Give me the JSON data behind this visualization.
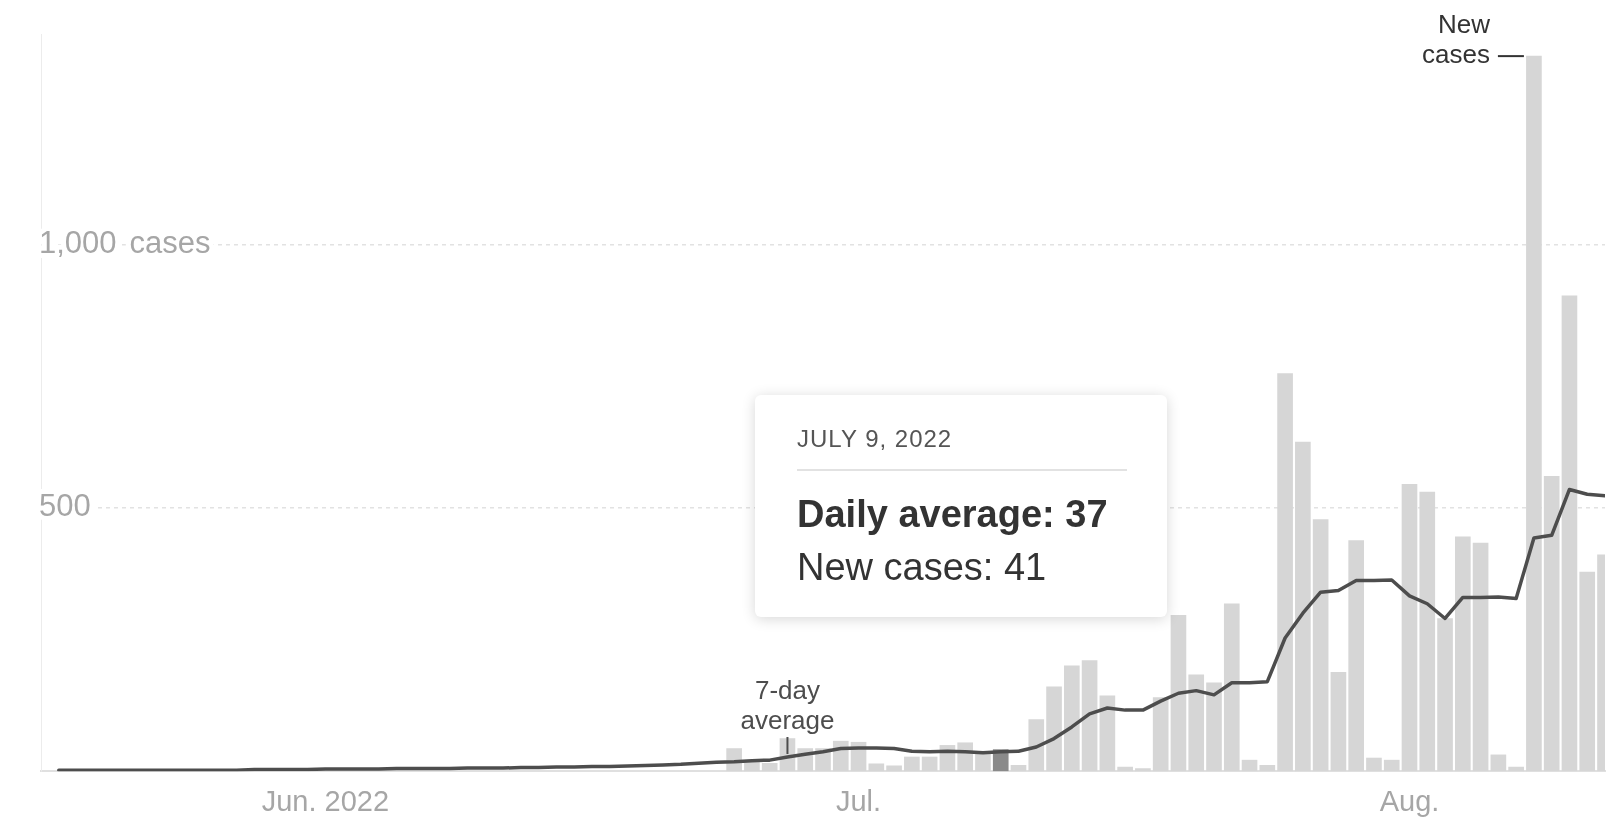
{
  "chart_data": {
    "type": "bar",
    "x": [
      "2022-05-17",
      "2022-05-18",
      "2022-05-19",
      "2022-05-20",
      "2022-05-21",
      "2022-05-22",
      "2022-05-23",
      "2022-05-24",
      "2022-05-25",
      "2022-05-26",
      "2022-05-27",
      "2022-05-28",
      "2022-05-29",
      "2022-05-30",
      "2022-05-31",
      "2022-06-01",
      "2022-06-02",
      "2022-06-03",
      "2022-06-04",
      "2022-06-05",
      "2022-06-06",
      "2022-06-07",
      "2022-06-08",
      "2022-06-09",
      "2022-06-10",
      "2022-06-11",
      "2022-06-12",
      "2022-06-13",
      "2022-06-14",
      "2022-06-15",
      "2022-06-16",
      "2022-06-17",
      "2022-06-18",
      "2022-06-19",
      "2022-06-20",
      "2022-06-21",
      "2022-06-22",
      "2022-06-23",
      "2022-06-24",
      "2022-06-25",
      "2022-06-26",
      "2022-06-27",
      "2022-06-28",
      "2022-06-29",
      "2022-06-30",
      "2022-07-01",
      "2022-07-02",
      "2022-07-03",
      "2022-07-04",
      "2022-07-05",
      "2022-07-06",
      "2022-07-07",
      "2022-07-08",
      "2022-07-09",
      "2022-07-10",
      "2022-07-11",
      "2022-07-12",
      "2022-07-13",
      "2022-07-14",
      "2022-07-15",
      "2022-07-16",
      "2022-07-17",
      "2022-07-18",
      "2022-07-19",
      "2022-07-20",
      "2022-07-21",
      "2022-07-22",
      "2022-07-23",
      "2022-07-24",
      "2022-07-25",
      "2022-07-26",
      "2022-07-27",
      "2022-07-28",
      "2022-07-29",
      "2022-07-30",
      "2022-07-31",
      "2022-08-01",
      "2022-08-02",
      "2022-08-03",
      "2022-08-04",
      "2022-08-05",
      "2022-08-06",
      "2022-08-07",
      "2022-08-08",
      "2022-08-09",
      "2022-08-10",
      "2022-08-11",
      "2022-08-12"
    ],
    "series": [
      {
        "name": "New cases",
        "values": [
          null,
          null,
          null,
          null,
          null,
          null,
          null,
          null,
          null,
          null,
          null,
          null,
          null,
          null,
          null,
          null,
          null,
          null,
          null,
          null,
          null,
          null,
          null,
          null,
          null,
          null,
          null,
          null,
          null,
          null,
          null,
          null,
          null,
          null,
          null,
          null,
          null,
          null,
          43,
          18,
          15,
          62,
          43,
          43,
          57,
          55,
          14,
          10,
          27,
          27,
          49,
          54,
          37,
          41,
          11,
          98,
          160,
          200,
          210,
          143,
          8,
          5,
          140,
          296,
          183,
          168,
          318,
          21,
          11,
          755,
          625,
          478,
          188,
          438,
          25,
          21,
          545,
          530,
          290,
          445,
          433,
          31,
          8,
          1358,
          560,
          903,
          378,
          411
        ],
        "colors": [
          "#d6d6d6",
          "#d6d6d6",
          "#d6d6d6",
          "#d6d6d6",
          "#d6d6d6",
          "#d6d6d6",
          "#d6d6d6",
          "#d6d6d6",
          "#d6d6d6",
          "#d6d6d6",
          "#d6d6d6",
          "#d6d6d6",
          "#d6d6d6",
          "#d6d6d6",
          "#d6d6d6",
          "#d6d6d6",
          "#d6d6d6",
          "#d6d6d6",
          "#d6d6d6",
          "#d6d6d6",
          "#d6d6d6",
          "#d6d6d6",
          "#d6d6d6",
          "#d6d6d6",
          "#d6d6d6",
          "#d6d6d6",
          "#d6d6d6",
          "#d6d6d6",
          "#d6d6d6",
          "#d6d6d6",
          "#d6d6d6",
          "#d6d6d6",
          "#d6d6d6",
          "#d6d6d6",
          "#d6d6d6",
          "#d6d6d6",
          "#d6d6d6",
          "#d6d6d6",
          "#d6d6d6",
          "#d6d6d6",
          "#d6d6d6",
          "#d6d6d6",
          "#d6d6d6",
          "#d6d6d6",
          "#d6d6d6",
          "#d6d6d6",
          "#d6d6d6",
          "#d6d6d6",
          "#d6d6d6",
          "#d6d6d6",
          "#d6d6d6",
          "#d6d6d6",
          "#d6d6d6",
          "#8a8a8a",
          "#d6d6d6",
          "#d6d6d6",
          "#d6d6d6",
          "#d6d6d6",
          "#d6d6d6",
          "#d6d6d6",
          "#d6d6d6",
          "#d6d6d6",
          "#d6d6d6",
          "#d6d6d6",
          "#d6d6d6",
          "#d6d6d6",
          "#d6d6d6",
          "#d6d6d6",
          "#d6d6d6",
          "#d6d6d6",
          "#d6d6d6",
          "#d6d6d6",
          "#d6d6d6",
          "#d6d6d6",
          "#d6d6d6",
          "#d6d6d6",
          "#d6d6d6",
          "#d6d6d6",
          "#d6d6d6",
          "#d6d6d6",
          "#d6d6d6",
          "#d6d6d6",
          "#d6d6d6",
          "#d6d6d6",
          "#d6d6d6",
          "#d6d6d6",
          "#d6d6d6",
          "#d6d6d6"
        ]
      },
      {
        "name": "7-day average",
        "type": "line",
        "color": "#4d4d4d",
        "values": [
          2,
          2,
          2,
          2,
          2,
          2,
          2,
          2,
          2,
          2,
          2,
          3,
          3,
          3,
          3,
          4,
          4,
          4,
          4,
          5,
          5,
          5,
          5,
          6,
          6,
          6,
          7,
          7,
          8,
          8,
          9,
          9,
          10,
          11,
          12,
          13,
          15,
          17,
          18,
          20,
          21,
          27,
          32,
          37,
          43,
          44,
          44,
          43,
          38,
          37,
          38,
          37,
          35,
          37,
          38,
          46,
          62,
          84,
          109,
          120,
          116,
          116,
          133,
          148,
          153,
          145,
          168,
          168,
          170,
          253,
          300,
          340,
          343,
          362,
          362,
          363,
          333,
          318,
          290,
          330,
          330,
          331,
          328,
          443,
          448,
          535,
          526,
          523
        ]
      }
    ],
    "xlim": [
      "2022-05-16",
      "2022-08-12"
    ],
    "xticks": [
      {
        "value": "2022-06-01",
        "label": "Jun. 2022"
      },
      {
        "value": "2022-07-01",
        "label": "Jul."
      },
      {
        "value": "2022-08-01",
        "label": "Aug."
      }
    ],
    "yticks": [
      500,
      {
        "value": 1000,
        "label": "1,000"
      }
    ],
    "ylim": [
      0,
      1400
    ],
    "ylabel": "cases",
    "grid": "y",
    "annotations": [
      "JULY 9, 2022",
      "Daily average: 37",
      "New cases: 41"
    ]
  }
}
